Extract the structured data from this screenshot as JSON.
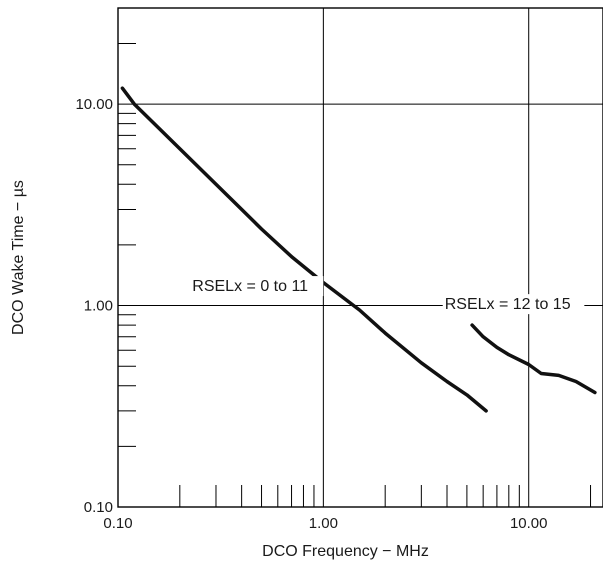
{
  "chart_data": {
    "type": "line",
    "xlabel": "DCO Frequency − MHz",
    "ylabel": "DCO Wake Time − µs",
    "x_scale": "log",
    "y_scale": "log",
    "xlim": [
      0.1,
      23
    ],
    "ylim": [
      0.1,
      30
    ],
    "grid": true,
    "x_ticks": [
      {
        "value": 0.1,
        "label": "0.10"
      },
      {
        "value": 1,
        "label": "1.00"
      },
      {
        "value": 10,
        "label": "10.00"
      }
    ],
    "y_ticks": [
      {
        "value": 0.1,
        "label": "0.10"
      },
      {
        "value": 1,
        "label": "1.00"
      },
      {
        "value": 10,
        "label": "10.00"
      }
    ],
    "series": [
      {
        "name": "RSELx = 0 to 11",
        "x": [
          0.105,
          0.12,
          0.15,
          0.2,
          0.3,
          0.4,
          0.5,
          0.7,
          1.0,
          1.5,
          2.0,
          3.0,
          4.0,
          5.0,
          6.2
        ],
        "y": [
          12.0,
          10.0,
          8.0,
          6.0,
          4.0,
          3.0,
          2.4,
          1.75,
          1.3,
          0.95,
          0.73,
          0.52,
          0.42,
          0.36,
          0.3
        ]
      },
      {
        "name": "RSELx = 12 to 15",
        "x": [
          5.3,
          6.0,
          7.0,
          8.0,
          10.0,
          11.5,
          14.0,
          17.0,
          21.0
        ],
        "y": [
          0.8,
          0.7,
          0.62,
          0.57,
          0.51,
          0.46,
          0.45,
          0.42,
          0.37
        ]
      }
    ],
    "annotations": [
      {
        "text": "RSELx = 0 to 11",
        "x": 0.23,
        "y": 1.18
      },
      {
        "text": "RSELx = 12 to 15",
        "x": 3.9,
        "y": 0.96
      }
    ]
  }
}
